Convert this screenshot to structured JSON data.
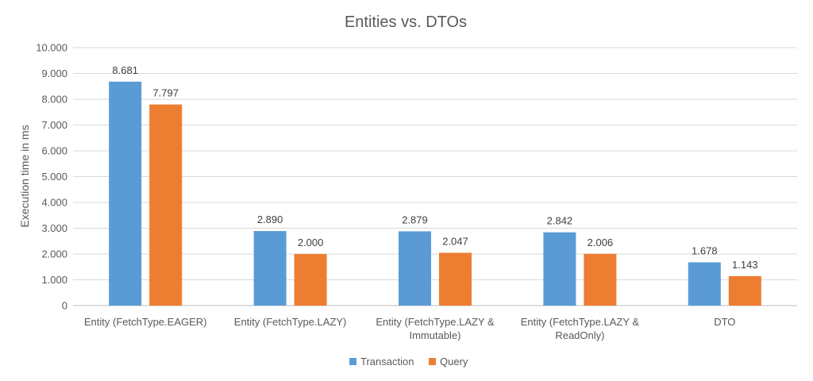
{
  "chart_data": {
    "type": "bar",
    "title": "Entities vs. DTOs",
    "xlabel": "",
    "ylabel": "Execution time in ms",
    "ylim": [
      0,
      10000
    ],
    "yticks": [
      0,
      1000,
      2000,
      3000,
      4000,
      5000,
      6000,
      7000,
      8000,
      9000,
      10000
    ],
    "ytick_labels": [
      "0",
      "1.000",
      "2.000",
      "3.000",
      "4.000",
      "5.000",
      "6.000",
      "7.000",
      "8.000",
      "9.000",
      "10.000"
    ],
    "grid": true,
    "legend_position": "bottom",
    "categories": [
      [
        "Entity (FetchType.EAGER)"
      ],
      [
        "Entity (FetchType.LAZY)"
      ],
      [
        "Entity (FetchType.LAZY &",
        "Immutable)"
      ],
      [
        "Entity (FetchType.LAZY &",
        "ReadOnly)"
      ],
      [
        "DTO"
      ]
    ],
    "series": [
      {
        "name": "Transaction",
        "color": "#5b9bd5",
        "values": [
          8681,
          2890,
          2879,
          2842,
          1678
        ],
        "labels": [
          "8.681",
          "2.890",
          "2.879",
          "2.842",
          "1.678"
        ]
      },
      {
        "name": "Query",
        "color": "#ed7d31",
        "values": [
          7797,
          2000,
          2047,
          2006,
          1143
        ],
        "labels": [
          "7.797",
          "2.000",
          "2.047",
          "2.006",
          "1.143"
        ]
      }
    ]
  }
}
